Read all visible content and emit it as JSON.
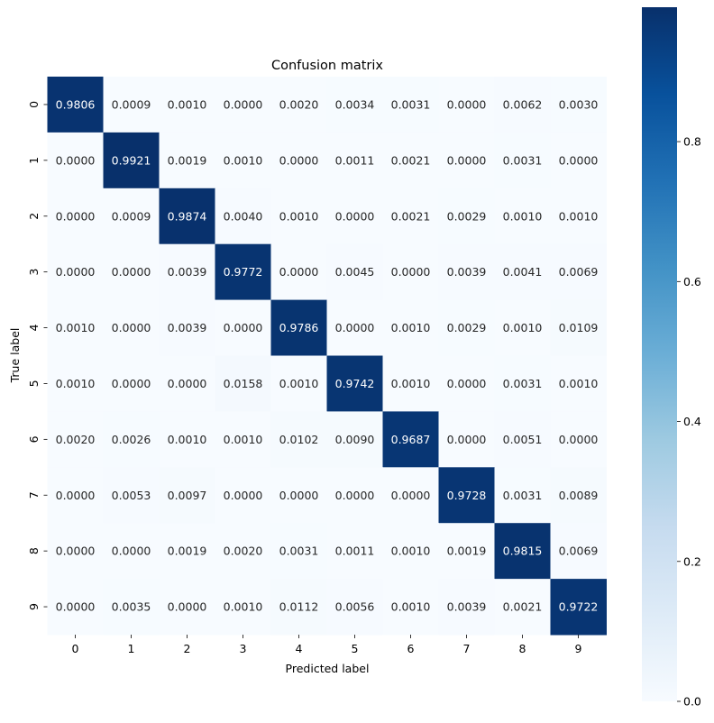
{
  "chart_data": {
    "type": "heatmap",
    "title": "Confusion matrix",
    "xlabel": "Predicted label",
    "ylabel": "True label",
    "x_categories": [
      "0",
      "1",
      "2",
      "3",
      "4",
      "5",
      "6",
      "7",
      "8",
      "9"
    ],
    "y_categories": [
      "0",
      "1",
      "2",
      "3",
      "4",
      "5",
      "6",
      "7",
      "8",
      "9"
    ],
    "values": [
      [
        0.9806,
        0.0009,
        0.001,
        0.0,
        0.002,
        0.0034,
        0.0031,
        0.0,
        0.0062,
        0.003
      ],
      [
        0.0,
        0.9921,
        0.0019,
        0.001,
        0.0,
        0.0011,
        0.0021,
        0.0,
        0.0031,
        0.0
      ],
      [
        0.0,
        0.0009,
        0.9874,
        0.004,
        0.001,
        0.0,
        0.0021,
        0.0029,
        0.001,
        0.001
      ],
      [
        0.0,
        0.0,
        0.0039,
        0.9772,
        0.0,
        0.0045,
        0.0,
        0.0039,
        0.0041,
        0.0069
      ],
      [
        0.001,
        0.0,
        0.0039,
        0.0,
        0.9786,
        0.0,
        0.001,
        0.0029,
        0.001,
        0.0109
      ],
      [
        0.001,
        0.0,
        0.0,
        0.0158,
        0.001,
        0.9742,
        0.001,
        0.0,
        0.0031,
        0.001
      ],
      [
        0.002,
        0.0026,
        0.001,
        0.001,
        0.0102,
        0.009,
        0.9687,
        0.0,
        0.0051,
        0.0
      ],
      [
        0.0,
        0.0053,
        0.0097,
        0.0,
        0.0,
        0.0,
        0.0,
        0.9728,
        0.0031,
        0.0089
      ],
      [
        0.0,
        0.0,
        0.0019,
        0.002,
        0.0031,
        0.0011,
        0.001,
        0.0019,
        0.9815,
        0.0069
      ],
      [
        0.0,
        0.0035,
        0.0,
        0.001,
        0.0112,
        0.0056,
        0.001,
        0.0039,
        0.0021,
        0.9722
      ]
    ],
    "colormap": "Blues",
    "colormap_stops": [
      "#f7fbff",
      "#deebf7",
      "#c6dbef",
      "#9ecae1",
      "#6baed6",
      "#4292c6",
      "#2171b5",
      "#08519c",
      "#08306b"
    ],
    "value_range": [
      0,
      0.9921
    ],
    "colorbar_ticks": [
      "0.0",
      "0.2",
      "0.4",
      "0.6",
      "0.8"
    ],
    "annotation_format": "4 decimals",
    "grid": false,
    "colorbar_position": "right"
  }
}
